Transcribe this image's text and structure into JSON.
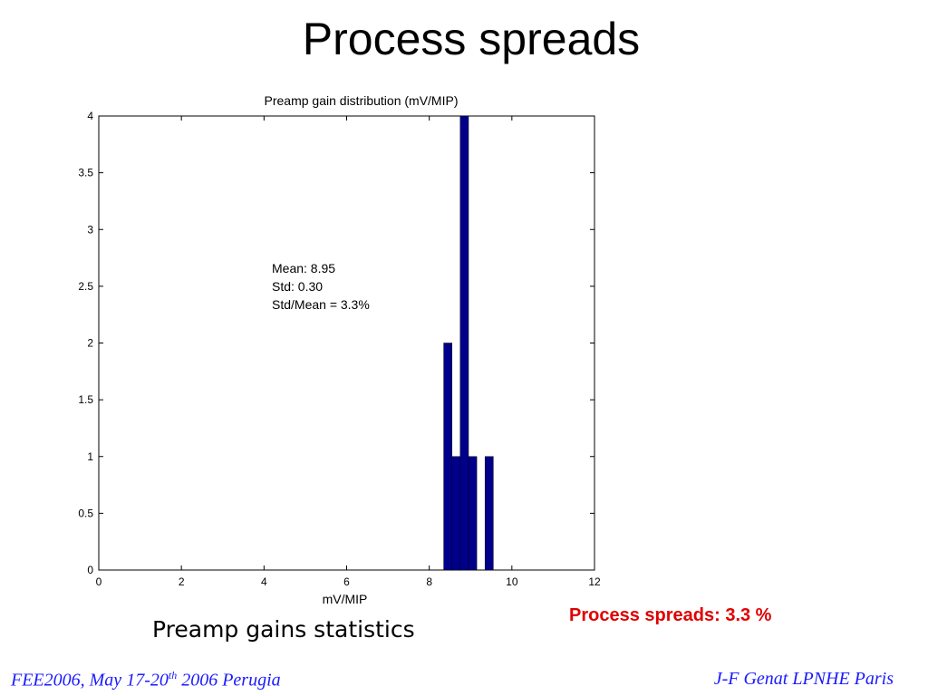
{
  "slide": {
    "title": "Process spreads",
    "caption": "Preamp gains statistics",
    "highlight": "Process spreads: 3.3 %",
    "footer_left": {
      "prefix": "FEE2006, May 17-20",
      "sup": "th",
      "suffix": " 2006 Perugia"
    },
    "footer_right": "J-F Genat LPNHE Paris"
  },
  "colors": {
    "bar": "#00008b",
    "highlight": "#e00000",
    "footer": "#1a1aff",
    "text": "#000000"
  },
  "chart_data": {
    "type": "bar",
    "title": "Preamp gain distribution (mV/MIP)",
    "xlabel": "mV/MIP",
    "ylabel": "",
    "xlim": [
      0,
      12
    ],
    "ylim": [
      0,
      4
    ],
    "xticks": [
      "0",
      "2",
      "4",
      "6",
      "8",
      "10",
      "12"
    ],
    "yticks": [
      "0",
      "0.5",
      "1",
      "1.5",
      "2",
      "2.5",
      "3",
      "3.5",
      "4"
    ],
    "bar_width": 0.2,
    "x": [
      8.45,
      8.65,
      8.85,
      9.05,
      9.45
    ],
    "values": [
      2,
      1,
      4,
      1,
      1
    ],
    "annotation": [
      "Mean: 8.95",
      "Std:    0.30",
      "Std/Mean = 3.3%"
    ],
    "grid": false
  }
}
